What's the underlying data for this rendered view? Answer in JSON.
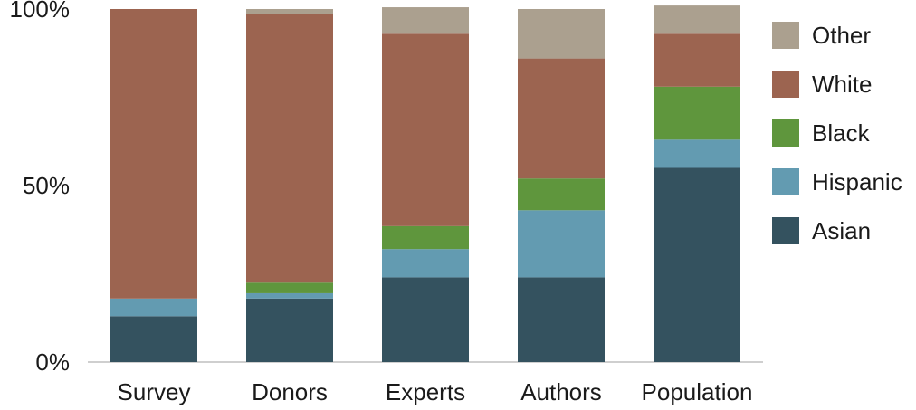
{
  "chart_data": {
    "type": "bar",
    "stacked": true,
    "categories": [
      "Survey",
      "Donors",
      "Experts",
      "Authors",
      "Population"
    ],
    "series": [
      {
        "name": "Asian",
        "color": "#34525F",
        "values": [
          13,
          18,
          24,
          24,
          55
        ]
      },
      {
        "name": "Hispanic",
        "color": "#639BB1",
        "values": [
          5,
          1.5,
          8,
          19,
          8
        ]
      },
      {
        "name": "Black",
        "color": "#5F963D",
        "values": [
          0,
          3,
          6.5,
          9,
          15
        ]
      },
      {
        "name": "White",
        "color": "#9C6450",
        "values": [
          82,
          76,
          54.5,
          34,
          15
        ]
      },
      {
        "name": "Other",
        "color": "#ABA08F",
        "values": [
          0,
          1.5,
          7.5,
          14,
          8
        ]
      }
    ],
    "legend_order": [
      "Other",
      "White",
      "Black",
      "Hispanic",
      "Asian"
    ],
    "legend_position": "right",
    "y_ticks": [
      "0%",
      "50%",
      "100%"
    ],
    "ylim": [
      0,
      100
    ],
    "grid": false
  }
}
